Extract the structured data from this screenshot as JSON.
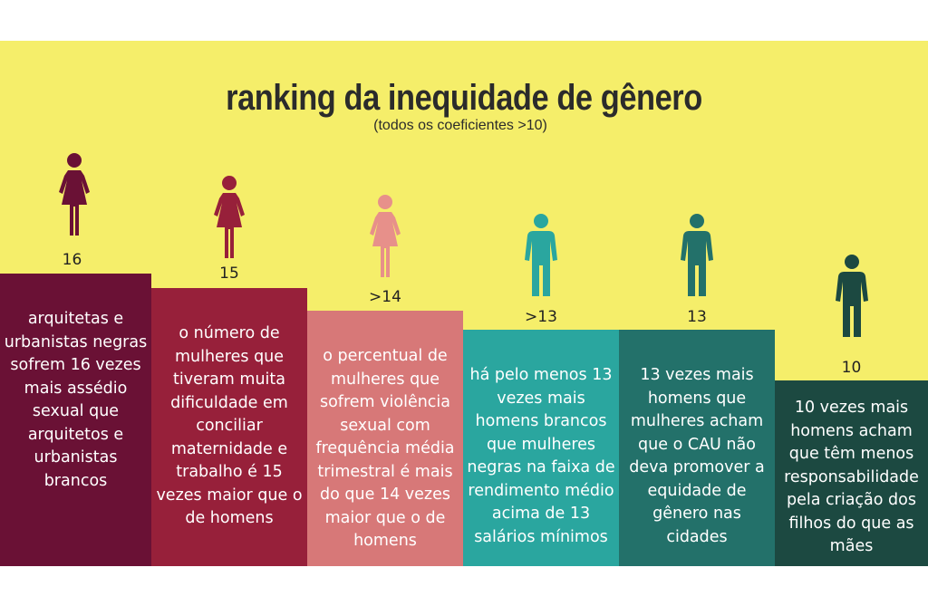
{
  "title": "ranking da inequidade de gênero",
  "subtitle": "(todos os coeficientes >10)",
  "chart_data": {
    "type": "bar",
    "title": "ranking da inequidade de gênero",
    "subtitle": "(todos os coeficientes >10)",
    "categories": [
      "arquitetas e urbanistas negras sofrem 16 vezes mais assédio sexual que arquitetos e urbanistas brancos",
      "o número de mulheres que tiveram muita dificuldade em conciliar maternidade e trabalho é 15 vezes maior que o de homens",
      "o percentual de mulheres que sofrem violência sexual com frequência média trimestral é mais do que 14 vezes maior que o de homens",
      "há pelo menos 13 vezes mais homens brancos que mulheres negras na faixa de rendimento médio acima de 13 salários mínimos",
      "13 vezes mais homens que mulheres acham que o CAU não deva promover a equidade de gênero nas cidades",
      "10 vezes mais homens acham que têm menos responsabilidade pela criação dos filhos do que as mães"
    ],
    "values": [
      16,
      15,
      14,
      13,
      13,
      10
    ],
    "value_labels": [
      "16",
      "15",
      ">14",
      ">13",
      "13",
      "10"
    ],
    "icons": [
      "woman-icon",
      "woman-icon",
      "woman-icon",
      "man-icon",
      "man-icon",
      "man-icon"
    ],
    "colors": [
      "#6a1135",
      "#97203a",
      "#d77878",
      "#2aa69f",
      "#23716a",
      "#1c4941"
    ],
    "icon_colors": [
      "#6a1135",
      "#97203a",
      "#e7908a",
      "#2aa69f",
      "#23716a",
      "#1c4941"
    ],
    "background": "#f5ee6a"
  }
}
